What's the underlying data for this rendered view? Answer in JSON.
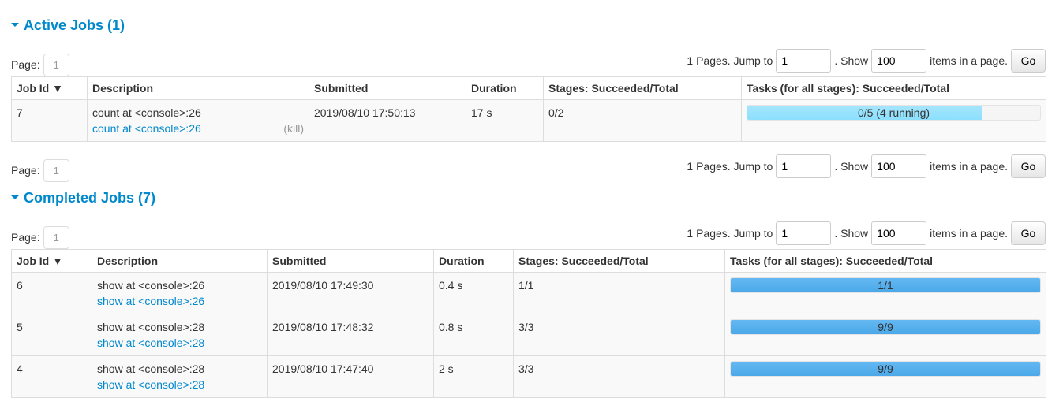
{
  "active": {
    "title": "Active Jobs (1)",
    "pager": {
      "page_label": "Page:",
      "page": "1",
      "pages_text": "1 Pages. Jump to",
      "jump_value": "1",
      "show_text": ". Show",
      "show_value": "100",
      "items_text": "items in a page.",
      "go": "Go"
    },
    "headers": [
      "Job Id ▼",
      "Description",
      "Submitted",
      "Duration",
      "Stages: Succeeded/Total",
      "Tasks (for all stages): Succeeded/Total"
    ],
    "rows": [
      {
        "id": "7",
        "desc": "count at <console>:26",
        "link": "count at <console>:26",
        "kill": "(kill)",
        "submitted": "2019/08/10 17:50:13",
        "duration": "17 s",
        "stages": "0/2",
        "tasks": "0/5 (4 running)",
        "progress": 0.8
      }
    ]
  },
  "completed": {
    "title": "Completed Jobs (7)",
    "pager": {
      "page_label": "Page:",
      "page": "1",
      "pages_text": "1 Pages. Jump to",
      "jump_value": "1",
      "show_text": ". Show",
      "show_value": "100",
      "items_text": "items in a page.",
      "go": "Go"
    },
    "headers": [
      "Job Id ▼",
      "Description",
      "Submitted",
      "Duration",
      "Stages: Succeeded/Total",
      "Tasks (for all stages): Succeeded/Total"
    ],
    "rows": [
      {
        "id": "6",
        "desc": "show at <console>:26",
        "link": "show at <console>:26",
        "submitted": "2019/08/10 17:49:30",
        "duration": "0.4 s",
        "stages": "1/1",
        "tasks": "1/1",
        "progress": 1
      },
      {
        "id": "5",
        "desc": "show at <console>:28",
        "link": "show at <console>:28",
        "submitted": "2019/08/10 17:48:32",
        "duration": "0.8 s",
        "stages": "3/3",
        "tasks": "9/9",
        "progress": 1
      },
      {
        "id": "4",
        "desc": "show at <console>:28",
        "link": "show at <console>:28",
        "submitted": "2019/08/10 17:47:40",
        "duration": "2 s",
        "stages": "3/3",
        "tasks": "9/9",
        "progress": 1
      }
    ]
  },
  "bottom_pager": {
    "page_label": "Page:",
    "page": "1",
    "pages_text": "1 Pages. Jump to",
    "jump_value": "1",
    "show_text": ". Show",
    "show_value": "100",
    "items_text": "items in a page.",
    "go": "Go"
  }
}
